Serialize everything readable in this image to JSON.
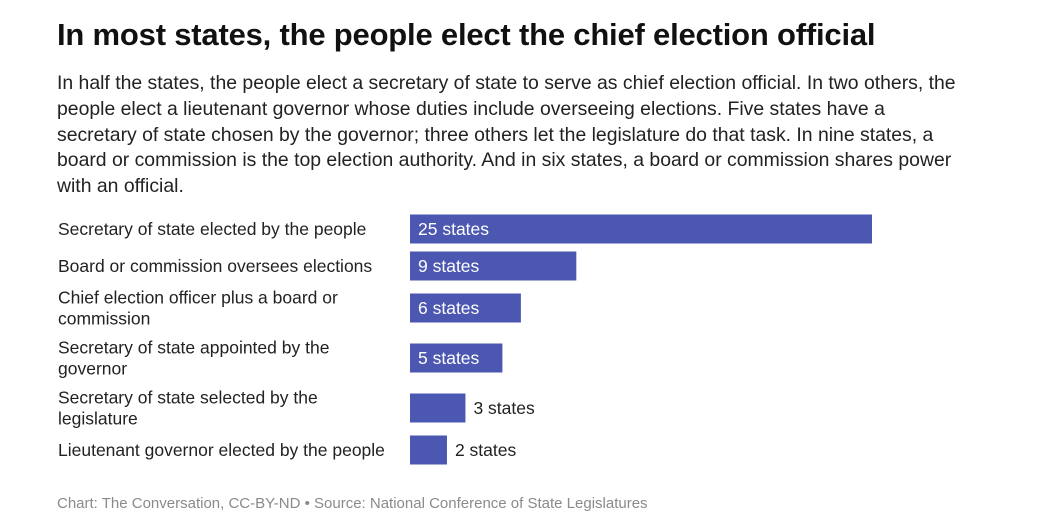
{
  "title": "In most states, the people elect the chief election official",
  "subtitle": "In half the states, the people elect a secretary of state to serve as chief election official. In two others, the people elect a lieutenant governor whose duties include overseeing elections. Five states have a secretary of state chosen by the governor; three others let the legislature do that task. In nine states, a board or commission is the top election authority. And in six states, a board or commission shares power with an official.",
  "footer": "Chart: The Conversation, CC-BY-ND • Source: National Conference of State Legislatures",
  "colors": {
    "bar": "#4b57b0",
    "label_inside": "#ffffff",
    "label_outside": "#222222"
  },
  "chart_data": {
    "type": "bar",
    "orientation": "horizontal",
    "title": "In most states, the people elect the chief election official",
    "xlabel": "",
    "ylabel": "",
    "xlim": [
      0,
      25
    ],
    "grid": false,
    "categories": [
      "Secretary of state elected by the people",
      "Board or commission oversees elections",
      "Chief election officer plus a board or commission",
      "Secretary of state appointed by the governor",
      "Secretary of state selected by the legislature",
      "Lieutenant governor elected by the people"
    ],
    "category_lines": [
      [
        "Secretary of state elected by the people"
      ],
      [
        "Board or commission oversees elections"
      ],
      [
        "Chief election officer plus a board or",
        "commission"
      ],
      [
        "Secretary of state appointed by the",
        "governor"
      ],
      [
        "Secretary of state selected by the",
        "legislature"
      ],
      [
        "Lieutenant governor elected by the people"
      ]
    ],
    "values": [
      25,
      9,
      6,
      5,
      3,
      2
    ],
    "data_labels": [
      "25 states",
      "9 states",
      "6 states",
      "5 states",
      "3 states",
      "2 states"
    ]
  }
}
